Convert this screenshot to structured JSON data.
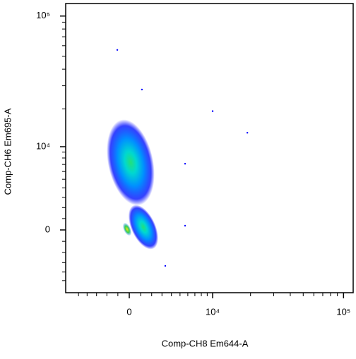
{
  "chart_data": {
    "type": "density",
    "x_label": "Comp-CH8 Em644-A",
    "y_label": "Comp-CH6 Em695-A",
    "scale": "biexponential",
    "xlim": [
      -6700,
      118000
    ],
    "ylim": [
      -6600,
      124000
    ],
    "xticks": [
      {
        "value": 0,
        "label": "0"
      },
      {
        "value": 10000,
        "label": "10⁴"
      },
      {
        "value": 100000,
        "label": "10⁵"
      }
    ],
    "yticks": [
      {
        "value": 0,
        "label": "0"
      },
      {
        "value": 10000,
        "label": "10⁴"
      },
      {
        "value": 100000,
        "label": "10⁵"
      }
    ],
    "minor_ticks": [
      -5000,
      -4000,
      -3000,
      -2000,
      -1000,
      1000,
      2000,
      3000,
      4000,
      5000,
      6000,
      7000,
      8000,
      9000,
      20000,
      30000,
      40000,
      50000,
      60000,
      70000,
      80000,
      90000
    ],
    "clusters": {
      "x": [
        120,
        1240,
        -185
      ],
      "y": [
        7300,
        250,
        60
      ]
    },
    "points": {
      "x": [
        -1050,
        10000,
        18900,
        1110,
        5640,
        5640,
        3340
      ],
      "y": [
        55800,
        19200,
        13000,
        28100,
        7100,
        370,
        -3340
      ]
    },
    "color": "#0000ff"
  }
}
